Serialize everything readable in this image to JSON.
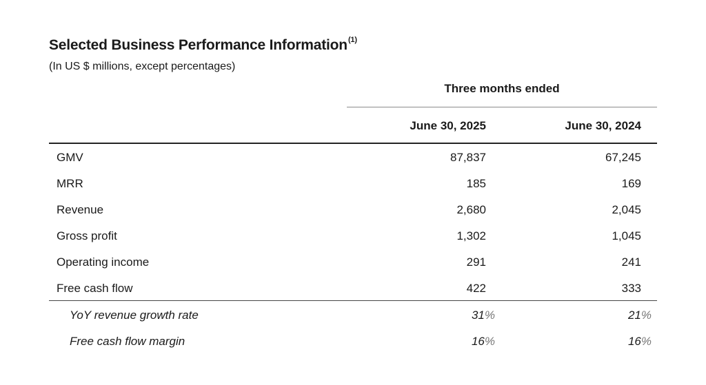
{
  "title": "Selected Business Performance Information",
  "title_footnote": "(1)",
  "subtitle": "(In US $ millions, except percentages)",
  "group_header": "Three months ended",
  "columns": [
    "June 30, 2025",
    "June 30, 2024"
  ],
  "rows": [
    {
      "label": "GMV",
      "v1": "87,837",
      "v2": "67,245"
    },
    {
      "label": "MRR",
      "v1": "185",
      "v2": "169"
    },
    {
      "label": "Revenue",
      "v1": "2,680",
      "v2": "2,045"
    },
    {
      "label": "Gross profit",
      "v1": "1,302",
      "v2": "1,045"
    },
    {
      "label": "Operating income",
      "v1": "291",
      "v2": "241"
    },
    {
      "label": "Free cash flow",
      "v1": "422",
      "v2": "333"
    }
  ],
  "ratio_rows": [
    {
      "label": "YoY revenue growth rate",
      "v1": "31",
      "v2": "21",
      "unit": "%"
    },
    {
      "label": "Free cash flow margin",
      "v1": "16",
      "v2": "16",
      "unit": "%"
    }
  ]
}
